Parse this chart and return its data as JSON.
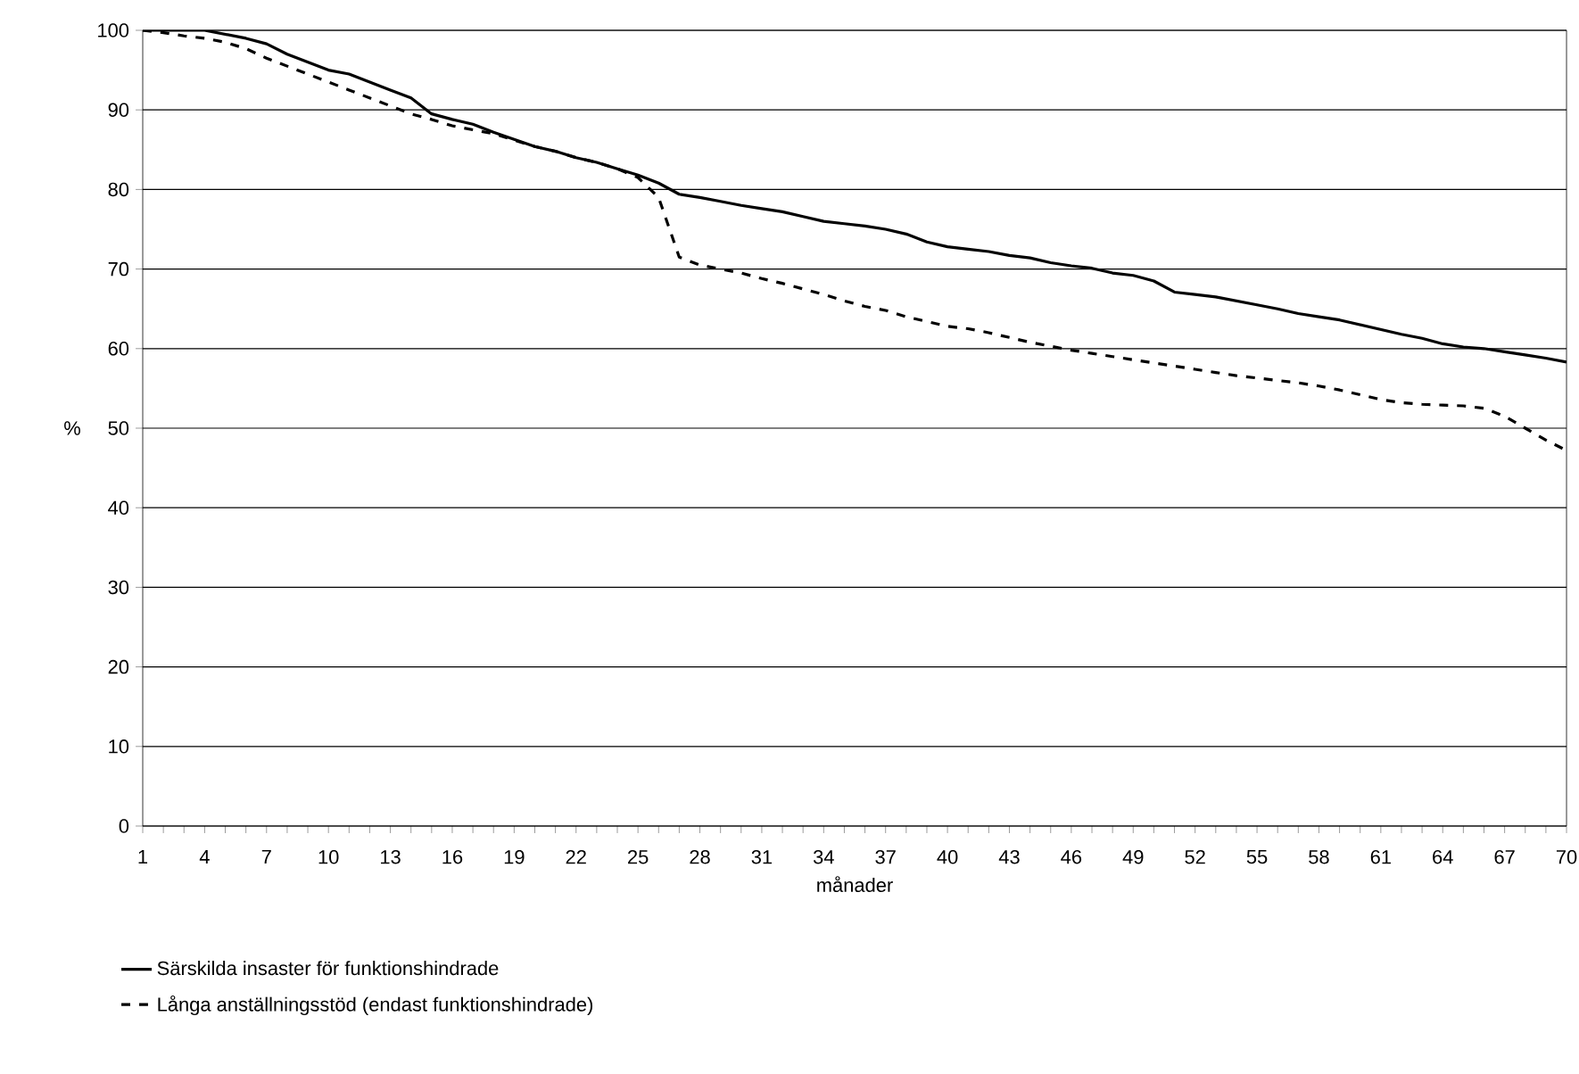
{
  "chart_data": {
    "type": "line",
    "xlabel": "månader",
    "ylabel": "%",
    "categories": [
      "1",
      null,
      null,
      "4",
      null,
      null,
      "7",
      null,
      null,
      "10",
      null,
      null,
      "13",
      null,
      null,
      "16",
      null,
      null,
      "19",
      null,
      null,
      "22",
      null,
      null,
      "25",
      null,
      null,
      "28",
      null,
      null,
      "31",
      null,
      null,
      "34",
      null,
      null,
      "37",
      null,
      null,
      "40",
      null,
      null,
      "43",
      null,
      null,
      "46",
      null,
      null,
      "49",
      null,
      null,
      "52",
      null,
      null,
      "55",
      null,
      null,
      "58",
      null,
      null,
      "61",
      null,
      null,
      "64",
      null,
      null,
      "67",
      null,
      null,
      "70"
    ],
    "series": [
      {
        "name": "Särskilda insaster för funktionshindrade",
        "color": "#000000",
        "line_style": "solid",
        "values": [
          100,
          100,
          100,
          100,
          99.5,
          99,
          98.3,
          97,
          96,
          95,
          94.5,
          93.5,
          92.5,
          91.5,
          89.5,
          88.8,
          88.2,
          87.2,
          86.3,
          85.4,
          84.8,
          84,
          83.4,
          82.6,
          81.8,
          80.8,
          79.4,
          79,
          78.5,
          78,
          77.6,
          77.2,
          76.6,
          76,
          75.7,
          75.4,
          75,
          74.4,
          73.4,
          72.8,
          72.5,
          72.2,
          71.7,
          71.4,
          70.8,
          70.4,
          70.1,
          69.5,
          69.2,
          68.5,
          67.1,
          66.8,
          66.5,
          66,
          65.5,
          65,
          64.4,
          64,
          63.6,
          63,
          62.4,
          61.8,
          61.3,
          60.6,
          60.2,
          60,
          59.6,
          59.2,
          58.8,
          58.3
        ]
      },
      {
        "name": "Långa anställningsstöd (endast funktionshindrade)",
        "color": "#000000",
        "line_style": "dashed",
        "values": [
          100,
          99.7,
          99.3,
          99,
          98.5,
          97.7,
          96.5,
          95.5,
          94.5,
          93.5,
          92.5,
          91.5,
          90.5,
          89.5,
          88.8,
          88,
          87.5,
          87,
          86.2,
          85.4,
          84.8,
          84,
          83.4,
          82.6,
          81.5,
          79,
          71.5,
          70.5,
          70,
          69.5,
          68.8,
          68.2,
          67.5,
          66.8,
          66,
          65.3,
          64.8,
          64,
          63.4,
          62.8,
          62.5,
          62,
          61.4,
          60.8,
          60.3,
          59.8,
          59.4,
          59,
          58.6,
          58.2,
          57.8,
          57.4,
          57,
          56.6,
          56.3,
          56,
          55.7,
          55.3,
          54.8,
          54.2,
          53.6,
          53.2,
          53,
          52.9,
          52.8,
          52.5,
          51.5,
          50,
          48.5,
          47.2
        ]
      }
    ],
    "ylim": [
      0,
      100
    ],
    "yticks": [
      0,
      10,
      20,
      30,
      40,
      50,
      60,
      70,
      80,
      90,
      100
    ],
    "grid": "y",
    "legend": "bottom",
    "marker": "none"
  }
}
